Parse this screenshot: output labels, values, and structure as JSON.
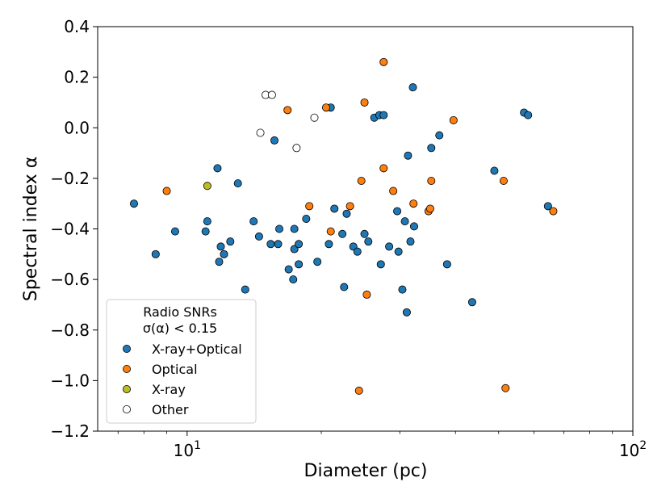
{
  "colors": {
    "xray_optical": "#1f77b4",
    "optical": "#ff7f0e",
    "xray": "#bcbd22",
    "other": "#ffffff",
    "edge": "#000000"
  },
  "chart_data": {
    "type": "scatter",
    "xscale": "log",
    "xlim": [
      6.3,
      100
    ],
    "ylim": [
      -1.2,
      0.4
    ],
    "xlabel": "Diameter (pc)",
    "ylabel": "Spectral index α",
    "grid": false,
    "legend_placement": "lower-left",
    "legend_title": [
      "Radio SNRs",
      "σ(α) < 0.15"
    ],
    "x_ticks": [
      {
        "value": 10,
        "base": "10",
        "exp": "1"
      },
      {
        "value": 100,
        "base": "10",
        "exp": "2"
      }
    ],
    "y_ticks": [
      {
        "value": 0.4,
        "label": "0.4"
      },
      {
        "value": 0.2,
        "label": "0.2"
      },
      {
        "value": 0.0,
        "label": "0.0"
      },
      {
        "value": -0.2,
        "label": "−0.2"
      },
      {
        "value": -0.4,
        "label": "−0.4"
      },
      {
        "value": -0.6,
        "label": "−0.6"
      },
      {
        "value": -0.8,
        "label": "−0.8"
      },
      {
        "value": -1.0,
        "label": "−1.0"
      },
      {
        "value": -1.2,
        "label": "−1.2"
      }
    ],
    "series": [
      {
        "name": "X-ray+Optical",
        "color": "#1f77b4",
        "points": [
          [
            7.6,
            -0.3
          ],
          [
            8.5,
            -0.5
          ],
          [
            9.4,
            -0.41
          ],
          [
            11.0,
            -0.41
          ],
          [
            11.1,
            -0.37
          ],
          [
            11.7,
            -0.16
          ],
          [
            11.8,
            -0.53
          ],
          [
            11.9,
            -0.47
          ],
          [
            12.1,
            -0.5
          ],
          [
            12.5,
            -0.45
          ],
          [
            13.0,
            -0.22
          ],
          [
            13.5,
            -0.64
          ],
          [
            14.1,
            -0.37
          ],
          [
            14.5,
            -0.43
          ],
          [
            15.4,
            -0.46
          ],
          [
            15.7,
            -0.05
          ],
          [
            16.0,
            -0.46
          ],
          [
            16.1,
            -0.4
          ],
          [
            16.9,
            -0.56
          ],
          [
            17.3,
            -0.6
          ],
          [
            17.4,
            -0.48
          ],
          [
            17.4,
            -0.4
          ],
          [
            17.8,
            -0.54
          ],
          [
            17.8,
            -0.46
          ],
          [
            18.5,
            -0.36
          ],
          [
            19.6,
            -0.53
          ],
          [
            20.8,
            -0.46
          ],
          [
            21.0,
            0.08
          ],
          [
            21.4,
            -0.32
          ],
          [
            22.3,
            -0.42
          ],
          [
            22.5,
            -0.63
          ],
          [
            22.8,
            -0.34
          ],
          [
            23.6,
            -0.47
          ],
          [
            24.1,
            -0.49
          ],
          [
            25.0,
            -0.42
          ],
          [
            25.5,
            -0.45
          ],
          [
            26.3,
            0.04
          ],
          [
            27.0,
            0.05
          ],
          [
            27.2,
            -0.54
          ],
          [
            27.6,
            0.05
          ],
          [
            28.4,
            -0.47
          ],
          [
            29.6,
            -0.33
          ],
          [
            29.8,
            -0.49
          ],
          [
            30.4,
            -0.64
          ],
          [
            30.8,
            -0.37
          ],
          [
            31.1,
            -0.73
          ],
          [
            31.3,
            -0.11
          ],
          [
            31.7,
            -0.45
          ],
          [
            32.1,
            0.16
          ],
          [
            32.3,
            -0.39
          ],
          [
            35.3,
            -0.08
          ],
          [
            36.8,
            -0.03
          ],
          [
            38.3,
            -0.54
          ],
          [
            43.6,
            -0.69
          ],
          [
            48.9,
            -0.17
          ],
          [
            57.0,
            0.06
          ],
          [
            58.2,
            0.05
          ],
          [
            64.5,
            -0.31
          ]
        ]
      },
      {
        "name": "Optical",
        "color": "#ff7f0e",
        "points": [
          [
            9.0,
            -0.25
          ],
          [
            16.8,
            0.07
          ],
          [
            18.8,
            -0.31
          ],
          [
            20.5,
            0.08
          ],
          [
            21.0,
            -0.41
          ],
          [
            23.2,
            -0.31
          ],
          [
            24.3,
            -1.04
          ],
          [
            24.6,
            -0.21
          ],
          [
            25.0,
            0.1
          ],
          [
            25.3,
            -0.66
          ],
          [
            27.6,
            -0.16
          ],
          [
            27.6,
            0.26
          ],
          [
            29.0,
            -0.25
          ],
          [
            32.2,
            -0.3
          ],
          [
            34.8,
            -0.33
          ],
          [
            35.1,
            -0.32
          ],
          [
            35.3,
            -0.21
          ],
          [
            39.6,
            0.03
          ],
          [
            51.3,
            -0.21
          ],
          [
            51.8,
            -1.03
          ],
          [
            66.3,
            -0.33
          ]
        ]
      },
      {
        "name": "X-ray",
        "color": "#bcbd22",
        "points": [
          [
            11.1,
            -0.23
          ]
        ]
      },
      {
        "name": "Other",
        "color": "#ffffff",
        "points": [
          [
            14.6,
            -0.02
          ],
          [
            15.0,
            0.13
          ],
          [
            15.5,
            0.13
          ],
          [
            17.6,
            -0.08
          ],
          [
            19.3,
            0.04
          ]
        ]
      }
    ]
  }
}
